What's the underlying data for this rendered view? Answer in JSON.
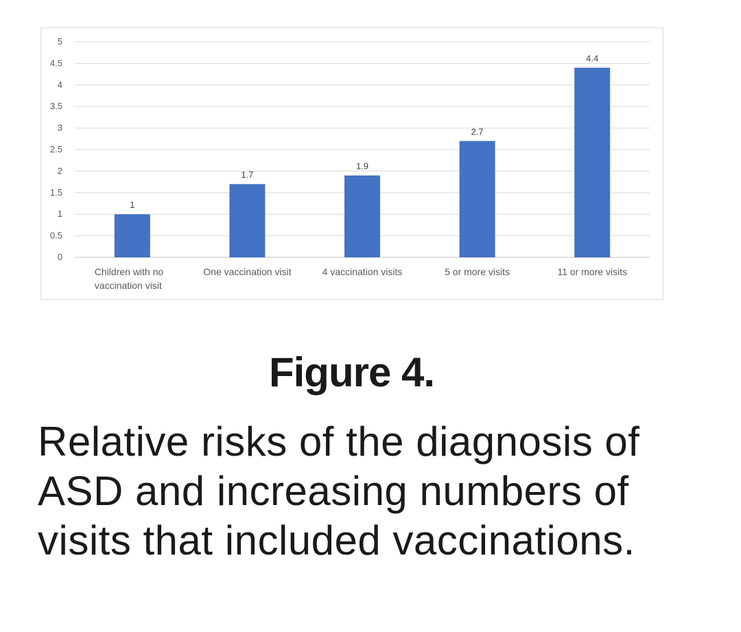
{
  "chart_data": {
    "type": "bar",
    "categories": [
      [
        "Children with no",
        "vaccination visit"
      ],
      [
        "One vaccination visit"
      ],
      [
        "4 vaccination visits"
      ],
      [
        "5 or more visits"
      ],
      [
        "11 or more visits"
      ]
    ],
    "values": [
      1,
      1.7,
      1.9,
      2.7,
      4.4
    ],
    "data_labels": [
      "1",
      "1.7",
      "1.9",
      "2.7",
      "4.4"
    ],
    "y_ticks": [
      "0",
      "0.5",
      "1",
      "1.5",
      "2",
      "2.5",
      "3",
      "3.5",
      "4",
      "4.5",
      "5"
    ],
    "ylim": [
      0,
      5
    ],
    "grid": true,
    "legend": "none",
    "bar_color": "#4472c4",
    "title": "",
    "xlabel": "",
    "ylabel": ""
  },
  "figure": {
    "label": "Figure 4.",
    "caption": "Relative risks of the diagnosis of ASD and increasing numbers of visits that included vaccinations."
  }
}
